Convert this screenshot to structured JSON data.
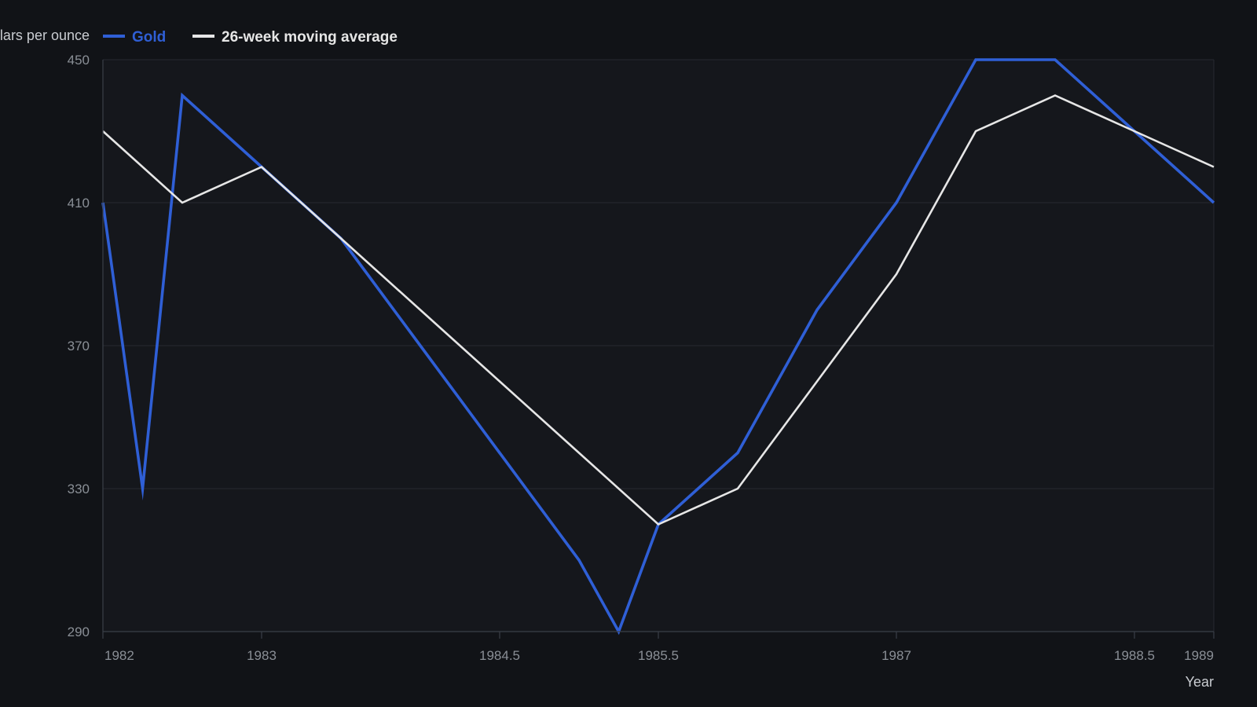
{
  "chart_data": {
    "type": "line",
    "ylabel": "Dollars per ounce",
    "xlabel": "Year",
    "xlim": [
      1982,
      1989
    ],
    "ylim": [
      290,
      450
    ],
    "x_ticks": [
      1982,
      1983,
      1984.5,
      1985.5,
      1987,
      1988.5,
      1989
    ],
    "y_ticks": [
      290,
      330,
      370,
      410,
      450
    ],
    "grid": true,
    "legend_position": "top-left",
    "series": [
      {
        "name": "Gold",
        "color": "#2f5fd6",
        "x": [
          1982,
          1982.25,
          1982.5,
          1983,
          1983.5,
          1984,
          1984.5,
          1985,
          1985.25,
          1985.5,
          1986,
          1986.5,
          1987,
          1987.5,
          1988,
          1988.5,
          1989
        ],
        "values": [
          410,
          330,
          440,
          420,
          400,
          370,
          340,
          310,
          290,
          320,
          340,
          380,
          410,
          450,
          450,
          430,
          410
        ]
      },
      {
        "name": "26-week moving average",
        "color": "#e6e6e6",
        "x": [
          1982,
          1982.5,
          1983,
          1983.5,
          1984,
          1984.5,
          1985,
          1985.5,
          1986,
          1986.5,
          1987,
          1987.5,
          1988,
          1988.5,
          1989
        ],
        "values": [
          430,
          410,
          420,
          400,
          380,
          360,
          340,
          320,
          330,
          360,
          390,
          430,
          440,
          430,
          420
        ]
      }
    ]
  },
  "colors": {
    "background": "#111317",
    "plot_background": "#15171c",
    "grid": "#262a31",
    "axis": "#3a3f47"
  }
}
